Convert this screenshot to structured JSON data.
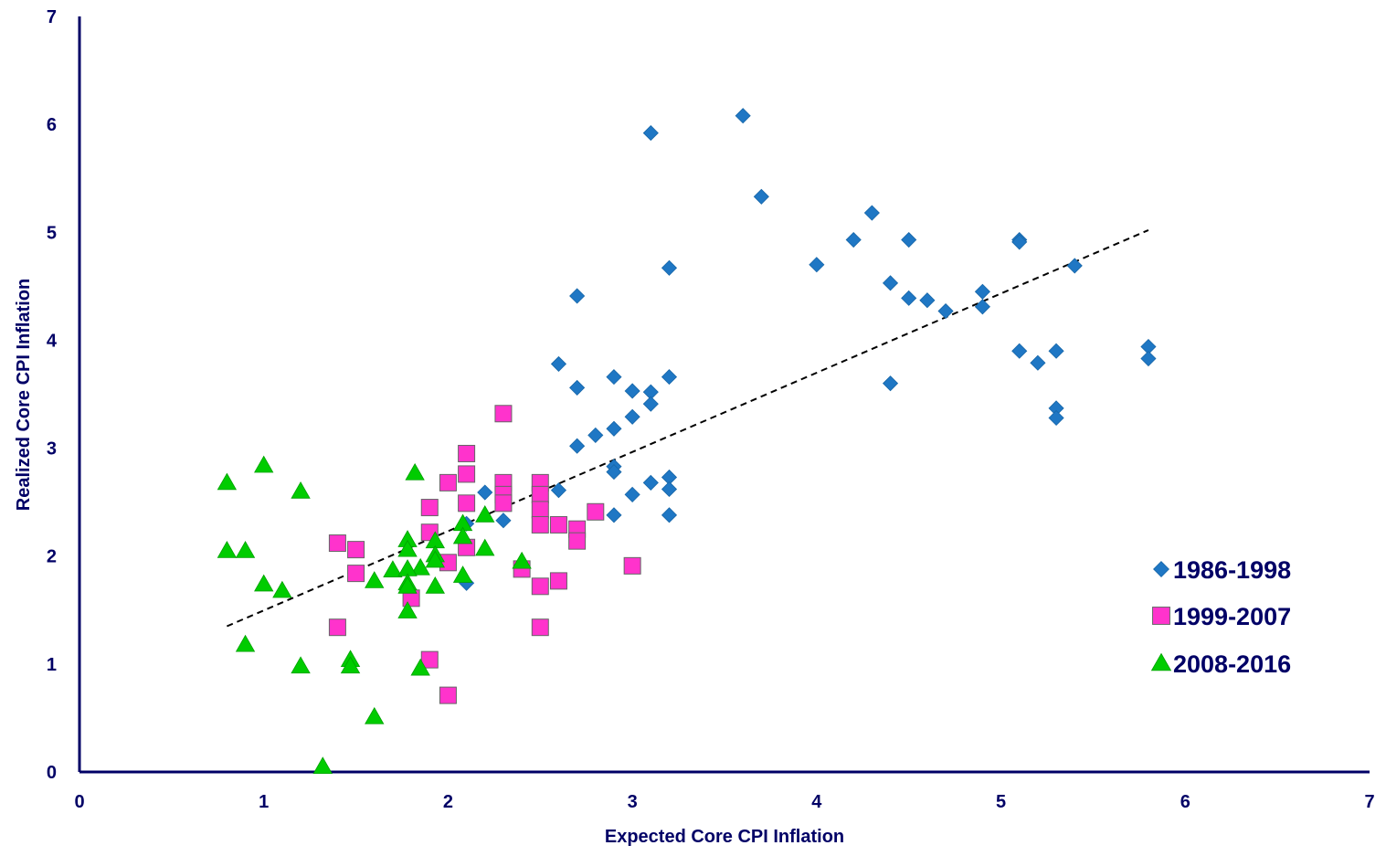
{
  "chart_data": {
    "type": "scatter",
    "xlabel": "Expected Core CPI Inflation",
    "ylabel": "Realized Core CPI Inflation",
    "xlim": [
      0,
      7
    ],
    "ylim": [
      0,
      7
    ],
    "x_ticks": [
      "0",
      "1",
      "2",
      "3",
      "4",
      "5",
      "6",
      "7"
    ],
    "y_ticks": [
      "0",
      "1",
      "2",
      "3",
      "4",
      "5",
      "6",
      "7"
    ],
    "grid": false,
    "legend_position": "right",
    "axis_color": "#000066",
    "series": [
      {
        "name": "1986-1998",
        "marker": "diamond",
        "color": "#1F77C4",
        "points": [
          [
            3.6,
            6.08
          ],
          [
            3.1,
            5.92
          ],
          [
            3.7,
            5.33
          ],
          [
            4.3,
            5.18
          ],
          [
            4.2,
            4.93
          ],
          [
            4.5,
            4.93
          ],
          [
            5.1,
            4.93
          ],
          [
            5.1,
            4.91
          ],
          [
            4.0,
            4.7
          ],
          [
            5.4,
            4.69
          ],
          [
            3.2,
            4.67
          ],
          [
            4.4,
            4.53
          ],
          [
            4.9,
            4.45
          ],
          [
            2.7,
            4.41
          ],
          [
            4.5,
            4.39
          ],
          [
            4.6,
            4.37
          ],
          [
            4.9,
            4.31
          ],
          [
            4.7,
            4.27
          ],
          [
            5.8,
            3.94
          ],
          [
            5.1,
            3.9
          ],
          [
            5.3,
            3.9
          ],
          [
            5.8,
            3.83
          ],
          [
            5.2,
            3.79
          ],
          [
            2.6,
            3.78
          ],
          [
            2.9,
            3.66
          ],
          [
            3.2,
            3.66
          ],
          [
            4.4,
            3.6
          ],
          [
            2.7,
            3.56
          ],
          [
            3.0,
            3.53
          ],
          [
            3.1,
            3.52
          ],
          [
            3.1,
            3.41
          ],
          [
            5.3,
            3.37
          ],
          [
            3.0,
            3.29
          ],
          [
            5.3,
            3.28
          ],
          [
            2.9,
            3.18
          ],
          [
            2.8,
            3.12
          ],
          [
            2.7,
            3.02
          ],
          [
            2.9,
            2.83
          ],
          [
            2.9,
            2.78
          ],
          [
            3.2,
            2.73
          ],
          [
            3.1,
            2.68
          ],
          [
            3.2,
            2.62
          ],
          [
            2.6,
            2.61
          ],
          [
            2.2,
            2.59
          ],
          [
            3.0,
            2.57
          ],
          [
            2.9,
            2.38
          ],
          [
            3.2,
            2.38
          ],
          [
            2.3,
            2.33
          ],
          [
            2.1,
            2.3
          ],
          [
            2.1,
            1.75
          ]
        ]
      },
      {
        "name": "1999-2007",
        "marker": "square",
        "color": "#FF33CC",
        "points": [
          [
            2.3,
            3.32
          ],
          [
            2.1,
            2.95
          ],
          [
            2.1,
            2.76
          ],
          [
            2.0,
            2.68
          ],
          [
            2.3,
            2.68
          ],
          [
            2.5,
            2.68
          ],
          [
            2.3,
            2.57
          ],
          [
            2.5,
            2.57
          ],
          [
            2.3,
            2.49
          ],
          [
            2.1,
            2.49
          ],
          [
            1.9,
            2.45
          ],
          [
            2.5,
            2.43
          ],
          [
            2.8,
            2.41
          ],
          [
            2.5,
            2.29
          ],
          [
            2.6,
            2.29
          ],
          [
            2.7,
            2.25
          ],
          [
            1.9,
            2.22
          ],
          [
            2.7,
            2.14
          ],
          [
            1.4,
            2.12
          ],
          [
            2.1,
            2.08
          ],
          [
            1.5,
            2.06
          ],
          [
            2.0,
            1.94
          ],
          [
            3.0,
            1.91
          ],
          [
            2.4,
            1.88
          ],
          [
            1.5,
            1.84
          ],
          [
            2.6,
            1.77
          ],
          [
            2.5,
            1.72
          ],
          [
            1.8,
            1.61
          ],
          [
            1.4,
            1.34
          ],
          [
            2.5,
            1.34
          ],
          [
            1.9,
            1.04
          ],
          [
            2.0,
            0.71
          ]
        ]
      },
      {
        "name": "2008-2016",
        "marker": "triangle",
        "color": "#00CC00",
        "points": [
          [
            1.0,
            2.84
          ],
          [
            1.82,
            2.77
          ],
          [
            0.8,
            2.68
          ],
          [
            1.2,
            2.6
          ],
          [
            2.2,
            2.38
          ],
          [
            2.08,
            2.3
          ],
          [
            2.08,
            2.18
          ],
          [
            1.78,
            2.15
          ],
          [
            1.93,
            2.14
          ],
          [
            0.8,
            2.05
          ],
          [
            0.9,
            2.05
          ],
          [
            1.78,
            2.06
          ],
          [
            2.2,
            2.07
          ],
          [
            1.93,
            2.01
          ],
          [
            1.93,
            1.96
          ],
          [
            2.4,
            1.95
          ],
          [
            1.85,
            1.89
          ],
          [
            1.7,
            1.87
          ],
          [
            1.78,
            1.88
          ],
          [
            2.08,
            1.82
          ],
          [
            1.6,
            1.77
          ],
          [
            1.78,
            1.75
          ],
          [
            1.0,
            1.74
          ],
          [
            1.93,
            1.72
          ],
          [
            1.78,
            1.72
          ],
          [
            1.1,
            1.68
          ],
          [
            1.78,
            1.49
          ],
          [
            0.9,
            1.18
          ],
          [
            1.47,
            1.04
          ],
          [
            1.47,
            0.98
          ],
          [
            1.2,
            0.98
          ],
          [
            1.85,
            0.96
          ],
          [
            1.6,
            0.51
          ],
          [
            1.32,
            0.05
          ]
        ]
      }
    ],
    "trendline": {
      "style": "dashed",
      "color": "#000000",
      "from": [
        0.8,
        1.35
      ],
      "to": [
        5.8,
        5.02
      ]
    }
  }
}
